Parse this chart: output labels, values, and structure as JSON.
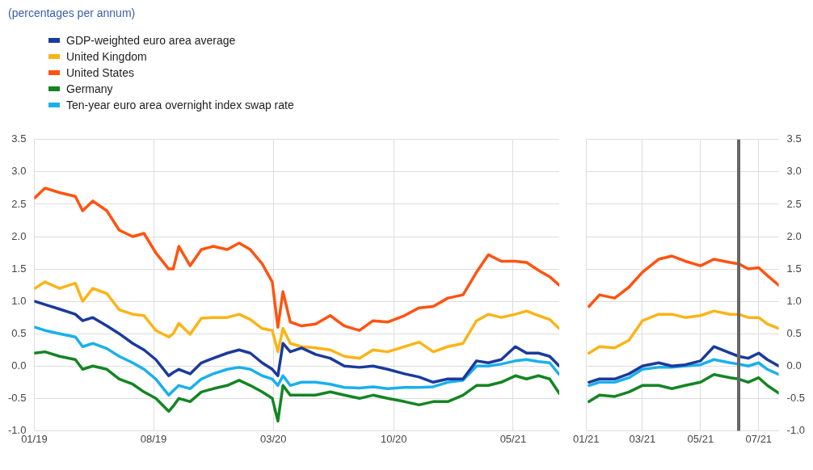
{
  "chart_data": [
    {
      "type": "line",
      "subtitle": "(percentages per annum)",
      "legend": "top left",
      "grid": true,
      "marker": "none",
      "line_style": "solid",
      "x": [
        "2019-01-02",
        "2019-01-20",
        "2019-02-15",
        "2019-03-15",
        "2019-03-28",
        "2019-04-15",
        "2019-05-10",
        "2019-06-01",
        "2019-06-25",
        "2019-07-15",
        "2019-08-05",
        "2019-08-28",
        "2019-09-05",
        "2019-09-15",
        "2019-10-05",
        "2019-10-25",
        "2019-11-15",
        "2019-12-10",
        "2019-12-31",
        "2020-01-20",
        "2020-02-10",
        "2020-02-28",
        "2020-03-09",
        "2020-03-18",
        "2020-03-31",
        "2020-04-20",
        "2020-05-15",
        "2020-06-10",
        "2020-07-05",
        "2020-08-01",
        "2020-08-25",
        "2020-09-20",
        "2020-10-20",
        "2020-11-15",
        "2020-12-10",
        "2021-01-05",
        "2021-02-01",
        "2021-02-25",
        "2021-03-18",
        "2021-04-10",
        "2021-05-05",
        "2021-05-25",
        "2021-06-15",
        "2021-07-05",
        "2021-07-22"
      ],
      "xlim": [
        "2019-01-01",
        "2021-07-22"
      ],
      "xticks": [
        {
          "value": "2019-01-01",
          "label": "01/19"
        },
        {
          "value": "2019-08-01",
          "label": "08/19"
        },
        {
          "value": "2020-03-01",
          "label": "03/20"
        },
        {
          "value": "2020-10-01",
          "label": "10/20"
        },
        {
          "value": "2021-05-01",
          "label": "05/21"
        }
      ],
      "ylim": [
        -1,
        3.5
      ],
      "yticks": [
        {
          "value": -1,
          "label": "-1.0"
        },
        -0.5,
        {
          "value": 0,
          "label": "0.0"
        },
        0.5,
        {
          "value": 1,
          "label": "1.0"
        },
        1.5,
        {
          "value": 2,
          "label": "2.0"
        },
        2.5,
        {
          "value": 3,
          "label": "3.0"
        },
        3.5
      ],
      "series": [
        {
          "name": "GDP-weighted euro area average",
          "color": "#1a3a9c",
          "values": [
            1.0,
            0.95,
            0.88,
            0.8,
            0.7,
            0.75,
            0.62,
            0.5,
            0.35,
            0.25,
            0.1,
            -0.15,
            -0.1,
            -0.05,
            -0.12,
            0.05,
            0.12,
            0.2,
            0.25,
            0.2,
            0.05,
            -0.05,
            -0.15,
            0.35,
            0.22,
            0.28,
            0.18,
            0.12,
            0.0,
            -0.02,
            0.0,
            -0.05,
            -0.12,
            -0.17,
            -0.25,
            -0.2,
            -0.2,
            0.08,
            0.05,
            0.1,
            0.3,
            0.2,
            0.2,
            0.15,
            0.0
          ]
        },
        {
          "name": "United Kingdom",
          "color": "#fbb416",
          "values": [
            1.2,
            1.3,
            1.2,
            1.28,
            1.0,
            1.2,
            1.12,
            0.87,
            0.8,
            0.78,
            0.55,
            0.45,
            0.5,
            0.66,
            0.49,
            0.74,
            0.75,
            0.75,
            0.8,
            0.72,
            0.58,
            0.55,
            0.22,
            0.58,
            0.35,
            0.3,
            0.28,
            0.25,
            0.15,
            0.12,
            0.25,
            0.22,
            0.3,
            0.37,
            0.22,
            0.3,
            0.35,
            0.7,
            0.8,
            0.75,
            0.8,
            0.85,
            0.78,
            0.72,
            0.58
          ]
        },
        {
          "name": "United States",
          "color": "#ff5310",
          "values": [
            2.6,
            2.75,
            2.68,
            2.62,
            2.4,
            2.55,
            2.4,
            2.1,
            2.0,
            2.05,
            1.75,
            1.5,
            1.5,
            1.85,
            1.55,
            1.8,
            1.85,
            1.8,
            1.9,
            1.8,
            1.58,
            1.3,
            0.6,
            1.15,
            0.68,
            0.62,
            0.65,
            0.78,
            0.62,
            0.55,
            0.7,
            0.68,
            0.78,
            0.9,
            0.92,
            1.05,
            1.1,
            1.45,
            1.72,
            1.62,
            1.62,
            1.6,
            1.48,
            1.38,
            1.25
          ]
        },
        {
          "name": "Germany",
          "color": "#138523",
          "values": [
            0.2,
            0.22,
            0.15,
            0.1,
            -0.05,
            0.0,
            -0.05,
            -0.2,
            -0.28,
            -0.4,
            -0.5,
            -0.7,
            -0.62,
            -0.5,
            -0.55,
            -0.4,
            -0.35,
            -0.3,
            -0.22,
            -0.3,
            -0.4,
            -0.5,
            -0.85,
            -0.3,
            -0.45,
            -0.45,
            -0.45,
            -0.4,
            -0.45,
            -0.5,
            -0.45,
            -0.5,
            -0.55,
            -0.6,
            -0.55,
            -0.55,
            -0.45,
            -0.3,
            -0.3,
            -0.25,
            -0.15,
            -0.2,
            -0.15,
            -0.2,
            -0.42
          ]
        },
        {
          "name": "Ten-year euro area overnight index swap rate",
          "color": "#1ab0ea",
          "values": [
            0.6,
            0.55,
            0.5,
            0.45,
            0.3,
            0.35,
            0.27,
            0.15,
            0.05,
            -0.05,
            -0.2,
            -0.45,
            -0.38,
            -0.3,
            -0.35,
            -0.2,
            -0.12,
            -0.05,
            -0.02,
            -0.05,
            -0.15,
            -0.2,
            -0.3,
            -0.15,
            -0.3,
            -0.25,
            -0.25,
            -0.28,
            -0.33,
            -0.34,
            -0.32,
            -0.35,
            -0.33,
            -0.33,
            -0.32,
            -0.25,
            -0.22,
            0.0,
            0.0,
            0.03,
            0.08,
            0.1,
            0.07,
            0.05,
            -0.13
          ]
        }
      ]
    },
    {
      "type": "line",
      "grid": true,
      "marker": "none",
      "line_style": "solid",
      "x": [
        "2021-01-04",
        "2021-01-15",
        "2021-01-31",
        "2021-02-15",
        "2021-03-01",
        "2021-03-18",
        "2021-04-01",
        "2021-04-15",
        "2021-05-01",
        "2021-05-15",
        "2021-06-01",
        "2021-06-10",
        "2021-06-20",
        "2021-07-01",
        "2021-07-10",
        "2021-07-22"
      ],
      "xlim": [
        "2021-01-01",
        "2021-07-22"
      ],
      "xticks": [
        {
          "value": "2021-01-01",
          "label": "01/21"
        },
        {
          "value": "2021-03-01",
          "label": "03/21"
        },
        {
          "value": "2021-05-01",
          "label": "05/21"
        },
        {
          "value": "2021-07-01",
          "label": "07/21"
        }
      ],
      "ylim": [
        -1,
        3.5
      ],
      "yticks": [
        {
          "value": -1,
          "label": "-1.0"
        },
        -0.5,
        {
          "value": 0,
          "label": "0.0"
        },
        0.5,
        {
          "value": 1,
          "label": "1.0"
        },
        1.5,
        {
          "value": 2,
          "label": "2.0"
        },
        2.5,
        {
          "value": 3,
          "label": "3.0"
        },
        3.5
      ],
      "ref_lines": [
        {
          "axis": "x",
          "value": "2021-06-10",
          "color": "#666666"
        }
      ],
      "series": [
        {
          "color": "#1a3a9c",
          "values": [
            -0.25,
            -0.2,
            -0.2,
            -0.12,
            0.0,
            0.05,
            0.0,
            0.02,
            0.08,
            0.3,
            0.2,
            0.15,
            0.12,
            0.2,
            0.1,
            0.0
          ]
        },
        {
          "color": "#fbb416",
          "values": [
            0.2,
            0.3,
            0.28,
            0.4,
            0.7,
            0.8,
            0.8,
            0.75,
            0.78,
            0.85,
            0.8,
            0.8,
            0.75,
            0.75,
            0.65,
            0.58
          ]
        },
        {
          "color": "#ff5310",
          "values": [
            0.92,
            1.1,
            1.05,
            1.22,
            1.45,
            1.65,
            1.7,
            1.62,
            1.55,
            1.65,
            1.6,
            1.58,
            1.5,
            1.52,
            1.4,
            1.25
          ]
        },
        {
          "color": "#138523",
          "values": [
            -0.55,
            -0.45,
            -0.47,
            -0.4,
            -0.3,
            -0.3,
            -0.35,
            -0.3,
            -0.25,
            -0.13,
            -0.18,
            -0.2,
            -0.25,
            -0.18,
            -0.3,
            -0.42
          ]
        },
        {
          "color": "#1ab0ea",
          "values": [
            -0.3,
            -0.25,
            -0.25,
            -0.18,
            -0.05,
            -0.02,
            -0.02,
            0.0,
            0.02,
            0.1,
            0.05,
            0.03,
            0.0,
            0.05,
            -0.05,
            -0.13
          ]
        }
      ]
    }
  ]
}
